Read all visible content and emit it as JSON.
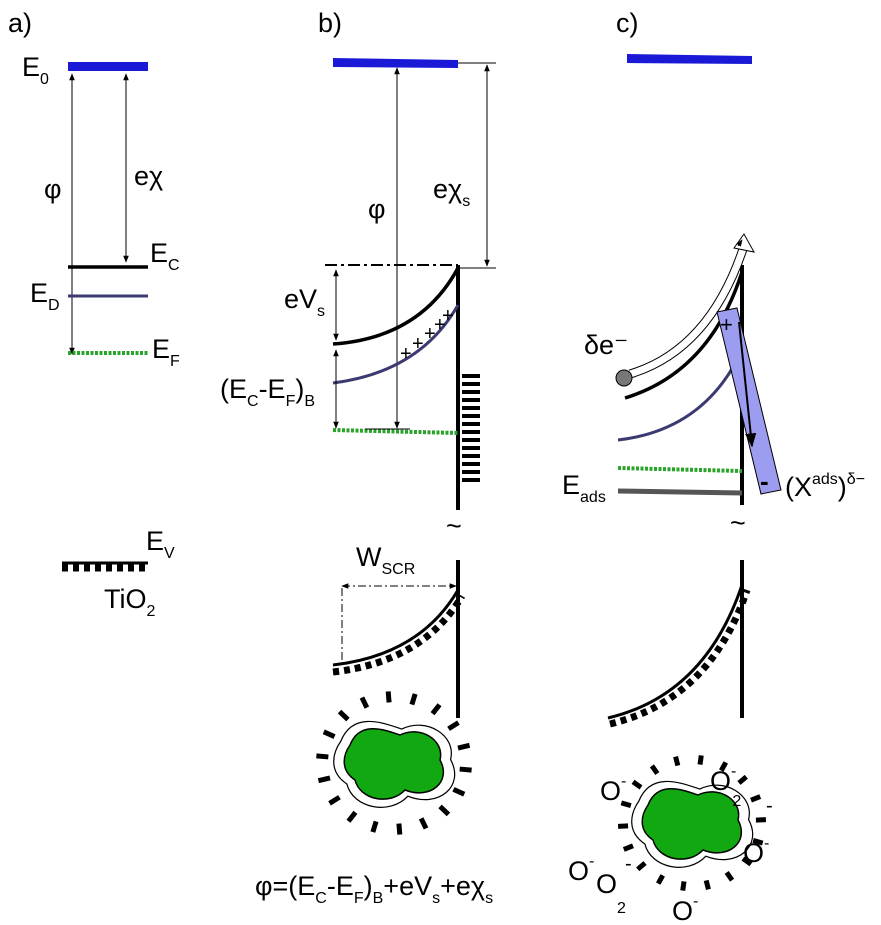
{
  "panel_labels": [
    "a)",
    "b)",
    "c)"
  ],
  "panel_a": {
    "e0": [
      "E",
      "0"
    ],
    "phi": "φ",
    "e_chi": "eχ",
    "ec": [
      "E",
      "C"
    ],
    "ed": [
      "E",
      "D"
    ],
    "ef": [
      "E",
      "F"
    ],
    "ev": [
      "E",
      "V"
    ],
    "material": [
      "TiO",
      "2"
    ]
  },
  "panel_b": {
    "phi": "φ",
    "e_chi_s": [
      "eχ",
      "s"
    ],
    "e_v_s": [
      "eV",
      "s"
    ],
    "ec_ef_b": [
      "(E",
      "C",
      "-E",
      "F",
      ")",
      "B"
    ],
    "plus": "+",
    "w_scr": [
      "W",
      "SCR"
    ],
    "equation": [
      "φ=(E",
      "C",
      "-E",
      "F",
      ")",
      "B",
      "+eV",
      "s",
      "+eχ",
      "s"
    ]
  },
  "panel_c": {
    "delta_e": "δe⁻",
    "plus": "+",
    "minus": "-",
    "e_ads": [
      "E",
      "ads"
    ],
    "x_ads": [
      "(X",
      "ads",
      ")",
      "δ−"
    ],
    "oxygen": "O",
    "charge": "-",
    "o2_sub": "2"
  }
}
